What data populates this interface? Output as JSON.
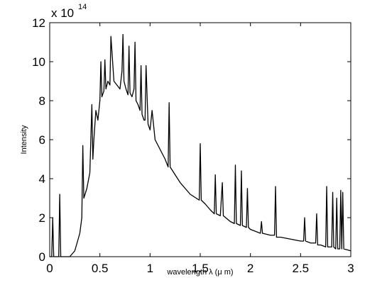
{
  "chart_data": {
    "type": "line",
    "xlabel": "wavelength λ (μ m)",
    "ylabel": "Intensity",
    "y_multiplier": {
      "base": "x 10",
      "exponent": "14"
    },
    "color": "#000000",
    "xlim": [
      0,
      3
    ],
    "xticks": [
      0,
      0.5,
      1,
      1.5,
      2,
      2.5,
      3
    ],
    "ylim": [
      0,
      12
    ],
    "yticks": [
      0,
      2,
      4,
      6,
      8,
      10,
      12
    ],
    "grid": false,
    "x": [
      0,
      0.02,
      0.03,
      0.04,
      0.09,
      0.1,
      0.11,
      0.2,
      0.25,
      0.3,
      0.32,
      0.33,
      0.34,
      0.37,
      0.4,
      0.42,
      0.43,
      0.44,
      0.46,
      0.48,
      0.5,
      0.51,
      0.52,
      0.54,
      0.55,
      0.56,
      0.58,
      0.6,
      0.61,
      0.64,
      0.67,
      0.7,
      0.72,
      0.73,
      0.74,
      0.76,
      0.78,
      0.79,
      0.8,
      0.82,
      0.84,
      0.85,
      0.86,
      0.88,
      0.9,
      0.91,
      0.92,
      0.94,
      0.95,
      0.96,
      0.98,
      1.0,
      1.02,
      1.05,
      1.1,
      1.15,
      1.18,
      1.19,
      1.2,
      1.25,
      1.3,
      1.35,
      1.4,
      1.49,
      1.5,
      1.51,
      1.55,
      1.6,
      1.64,
      1.65,
      1.66,
      1.7,
      1.72,
      1.73,
      1.8,
      1.84,
      1.85,
      1.86,
      1.9,
      1.91,
      1.92,
      1.96,
      1.97,
      1.98,
      2.0,
      2.1,
      2.11,
      2.12,
      2.2,
      2.24,
      2.25,
      2.26,
      2.3,
      2.4,
      2.5,
      2.53,
      2.54,
      2.55,
      2.6,
      2.65,
      2.66,
      2.67,
      2.7,
      2.75,
      2.76,
      2.77,
      2.81,
      2.82,
      2.83,
      2.85,
      2.86,
      2.87,
      2.89,
      2.9,
      2.91,
      2.92,
      2.93,
      3.0
    ],
    "values": [
      0,
      0,
      2,
      0,
      0,
      3.2,
      0,
      0,
      0.3,
      1.2,
      2,
      5.7,
      3,
      3.5,
      4.3,
      7.8,
      5,
      6,
      7.5,
      7,
      8,
      10,
      8.2,
      8.5,
      10.1,
      8.6,
      9,
      8.8,
      11.3,
      9,
      8.8,
      8.6,
      9.5,
      11.4,
      9,
      8.6,
      8.3,
      10.8,
      8.4,
      8.2,
      8.6,
      11,
      8,
      7.8,
      7.5,
      9.8,
      7.3,
      7,
      7,
      9.8,
      6.8,
      6.5,
      7.5,
      6,
      5.5,
      5,
      4.6,
      7.9,
      4.6,
      4.2,
      3.8,
      3.5,
      3.2,
      2.9,
      5.8,
      2.9,
      2.7,
      2.4,
      2.2,
      4.2,
      2.2,
      2.1,
      3.8,
      2.1,
      1.8,
      1.7,
      4.7,
      1.7,
      1.6,
      4.4,
      1.6,
      1.5,
      3.5,
      1.5,
      1.4,
      1.2,
      1.8,
      1.2,
      1.1,
      1.1,
      3.6,
      1.0,
      1.0,
      0.9,
      0.8,
      0.8,
      2.0,
      0.8,
      0.7,
      0.7,
      2.2,
      0.6,
      0.6,
      0.5,
      3.6,
      0.5,
      0.5,
      3.3,
      0.5,
      0.4,
      3.0,
      0.4,
      0.4,
      3.4,
      0.4,
      3.3,
      0.4,
      0.3
    ]
  }
}
